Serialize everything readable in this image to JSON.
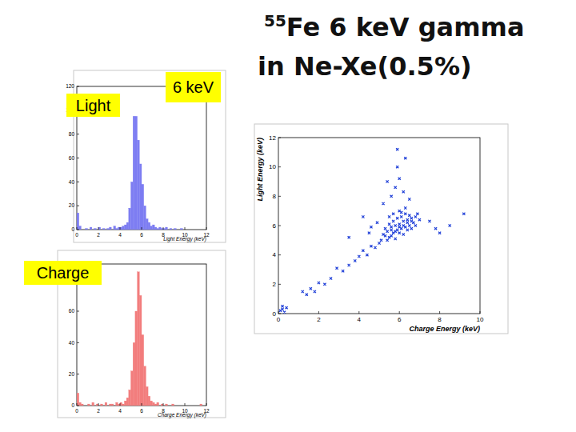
{
  "slide": {
    "title_superscript": "55",
    "title": "Fe 6 keV gamma",
    "title_line2": "in Ne-Xe(0.5%)",
    "label_light": "Light",
    "label_charge": "Charge",
    "label_energy": "6 keV"
  },
  "chart_data": [
    {
      "type": "histogram",
      "x_label": "Light Energy (keV)",
      "color": "#7d7df2",
      "bins": [
        0,
        0.2,
        0.4,
        0.6,
        0.8,
        1,
        1.2,
        1.4,
        1.6,
        1.8,
        2,
        2.2,
        2.4,
        2.6,
        2.8,
        3,
        3.2,
        3.4,
        3.6,
        3.8,
        4,
        4.2,
        4.4,
        4.6,
        4.8,
        5,
        5.2,
        5.4,
        5.6,
        5.8,
        6,
        6.2,
        6.4,
        6.6,
        6.8,
        7,
        7.2,
        7.4,
        7.6,
        7.8,
        8,
        8.2,
        8.4,
        8.6,
        8.8,
        9,
        9.2,
        9.4,
        9.6,
        9.8,
        10,
        10.2,
        10.4,
        10.6,
        10.8,
        11,
        11.2,
        11.4,
        11.6,
        11.8,
        12
      ],
      "values": [
        14,
        3,
        0,
        0,
        1,
        0,
        2,
        0,
        1,
        0,
        2,
        0,
        1,
        0,
        1,
        2,
        0,
        3,
        1,
        2,
        2,
        3,
        4,
        6,
        18,
        40,
        95,
        95,
        75,
        55,
        38,
        20,
        9,
        6,
        3,
        4,
        2,
        1,
        2,
        1,
        1,
        2,
        0,
        1,
        0,
        1,
        0,
        0,
        1,
        0,
        0,
        0,
        0,
        0,
        0,
        0,
        0,
        0,
        0,
        0
      ],
      "xlim": [
        0,
        12
      ],
      "ylim": [
        0,
        120
      ],
      "xticks": [
        0,
        2,
        4,
        6,
        8,
        10,
        12
      ],
      "yticks": [
        0,
        20,
        40,
        60,
        80,
        100,
        120
      ]
    },
    {
      "type": "histogram",
      "x_label": "Charge Energy (keV)",
      "color": "#f27d7d",
      "bins": [
        0,
        0.2,
        0.4,
        0.6,
        0.8,
        1,
        1.2,
        1.4,
        1.6,
        1.8,
        2,
        2.2,
        2.4,
        2.6,
        2.8,
        3,
        3.2,
        3.4,
        3.6,
        3.8,
        4,
        4.2,
        4.4,
        4.6,
        4.8,
        5,
        5.2,
        5.4,
        5.6,
        5.8,
        6,
        6.2,
        6.4,
        6.6,
        6.8,
        7,
        7.2,
        7.4,
        7.6,
        7.8,
        8,
        8.2,
        8.4,
        8.6,
        8.8,
        9,
        9.2,
        9.4,
        9.6,
        9.8,
        10,
        10.2,
        10.4,
        10.6,
        10.8,
        11,
        11.2,
        11.4,
        11.6,
        11.8,
        12
      ],
      "values": [
        8,
        2,
        1,
        0,
        0,
        1,
        0,
        2,
        0,
        1,
        0,
        1,
        0,
        2,
        0,
        1,
        1,
        0,
        2,
        1,
        2,
        1,
        3,
        5,
        10,
        22,
        40,
        60,
        85,
        70,
        45,
        25,
        12,
        6,
        3,
        2,
        1,
        2,
        0,
        1,
        0,
        1,
        0,
        0,
        1,
        0,
        0,
        0,
        0,
        0,
        0,
        0,
        0,
        0,
        0,
        0,
        0,
        1,
        0,
        0
      ],
      "xlim": [
        0,
        12
      ],
      "ylim": [
        0,
        90
      ],
      "xticks": [
        0,
        2,
        4,
        6,
        8,
        10,
        12
      ],
      "yticks": [
        0,
        20,
        40,
        60,
        80
      ]
    },
    {
      "type": "scatter",
      "x_label": "Charge Energy (keV)",
      "y_label": "Light Energy (keV)",
      "color": "#1f3fd8",
      "marker": "cross",
      "x": [
        0.2,
        0.3,
        0.1,
        0.4,
        0.2,
        1.2,
        1.4,
        1.6,
        1.8,
        2.0,
        2.3,
        2.6,
        2.9,
        3.2,
        3.5,
        3.8,
        4.0,
        4.2,
        4.4,
        4.6,
        4.8,
        5.0,
        5.2,
        5.4,
        5.5,
        5.6,
        5.7,
        5.8,
        5.9,
        6.0,
        6.1,
        6.2,
        6.3,
        6.4,
        6.5,
        6.6,
        6.7,
        6.8,
        5.3,
        5.5,
        5.7,
        5.9,
        6.1,
        6.3,
        6.5,
        5.4,
        5.6,
        5.8,
        6.0,
        6.2,
        6.4,
        6.6,
        6.8,
        7.0,
        5.1,
        5.3,
        5.6,
        5.8,
        6.0,
        6.2,
        6.4,
        6.6,
        6.9,
        5.7,
        6.0,
        6.3,
        5.5,
        6.1,
        5.2,
        5.6,
        5.8,
        6.0,
        5.9,
        6.3,
        5.4,
        6.2,
        5.9,
        6.5,
        7.5,
        8.0,
        8.5,
        9.2,
        7.8,
        4.5,
        4.6,
        4.9,
        3.5,
        4.2
      ],
      "values": [
        0.3,
        0.1,
        0.2,
        0.4,
        0.5,
        1.5,
        1.3,
        1.7,
        1.5,
        2.1,
        2.0,
        2.4,
        3.1,
        2.9,
        3.3,
        3.6,
        3.9,
        4.3,
        4.0,
        4.6,
        4.5,
        4.8,
        5.4,
        5.6,
        5.2,
        5.9,
        5.5,
        6.0,
        5.7,
        6.1,
        5.8,
        6.3,
        5.9,
        6.2,
        6.0,
        6.5,
        6.2,
        6.6,
        5.8,
        6.1,
        6.3,
        6.5,
        6.6,
        6.8,
        6.7,
        5.0,
        5.3,
        5.1,
        5.5,
        5.4,
        5.7,
        5.8,
        6.0,
        6.4,
        5.0,
        5.3,
        5.7,
        5.6,
        5.9,
        6.0,
        6.4,
        6.3,
        6.8,
        6.8,
        7.0,
        7.2,
        6.6,
        6.9,
        7.5,
        8.0,
        8.6,
        9.2,
        10.0,
        10.6,
        9.0,
        8.3,
        11.2,
        7.8,
        6.3,
        5.5,
        6.0,
        6.8,
        5.8,
        5.5,
        5.9,
        6.2,
        5.2,
        6.6
      ],
      "xlim": [
        0,
        10
      ],
      "ylim": [
        0,
        12
      ],
      "xticks": [
        0,
        2,
        4,
        6,
        8,
        10
      ],
      "yticks": [
        0,
        2,
        4,
        6,
        8,
        10,
        12
      ]
    }
  ]
}
